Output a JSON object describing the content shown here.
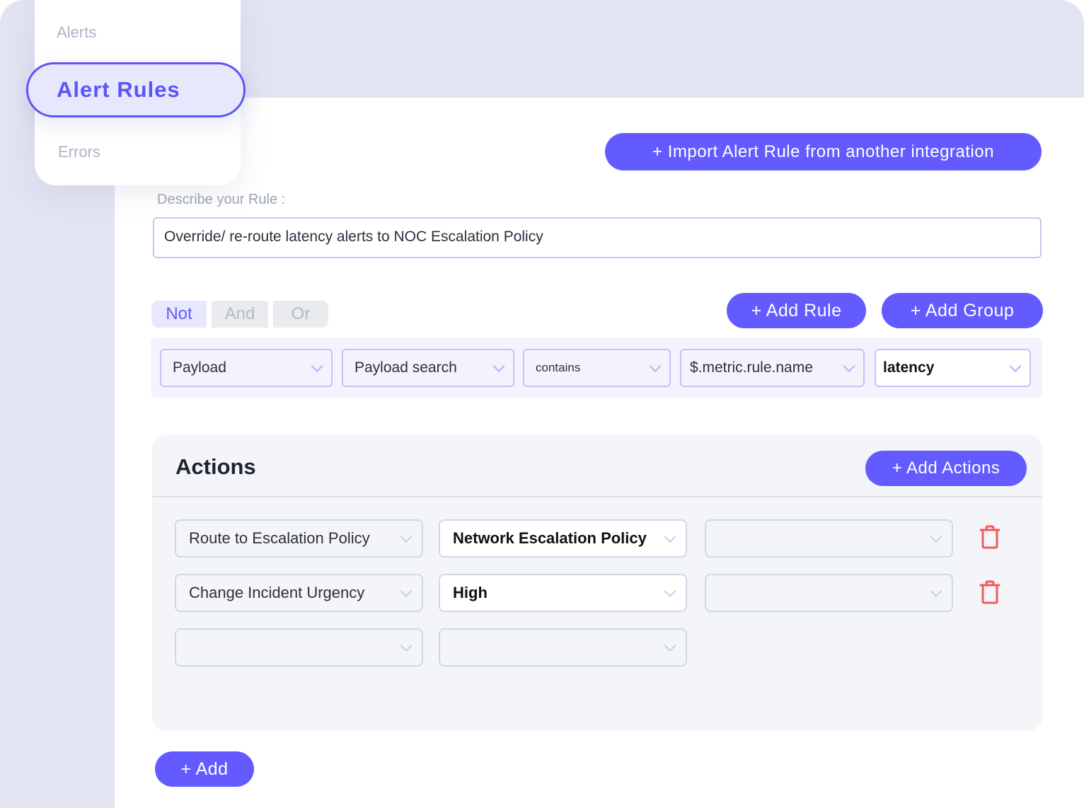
{
  "sidebar": {
    "items": [
      {
        "label": "Alerts"
      },
      {
        "label": "Alert Rules",
        "active": true
      },
      {
        "label": "Errors"
      }
    ]
  },
  "import_button": "+ Import Alert Rule from another integration",
  "describe": {
    "label": "Describe your Rule :",
    "value": "Override/ re-route latency alerts to NOC Escalation Policy"
  },
  "logic": {
    "options": [
      "Not",
      "And",
      "Or"
    ],
    "selected": "Not"
  },
  "add_rule": "+  Add Rule",
  "add_group": "+  Add Group",
  "rule": {
    "fields": [
      "Payload",
      "Payload search",
      "contains",
      "$.metric.rule.name",
      "latency"
    ]
  },
  "actions": {
    "title": "Actions",
    "add_actions": "+ Add Actions",
    "rows": [
      [
        "Route to Escalation Policy",
        "Network Escalation Policy",
        ""
      ],
      [
        "Change Incident Urgency",
        "High",
        ""
      ],
      [
        "",
        ""
      ]
    ]
  },
  "add_button": "+  Add",
  "colors": {
    "accent": "#635bff",
    "danger": "#ef5b5b"
  }
}
